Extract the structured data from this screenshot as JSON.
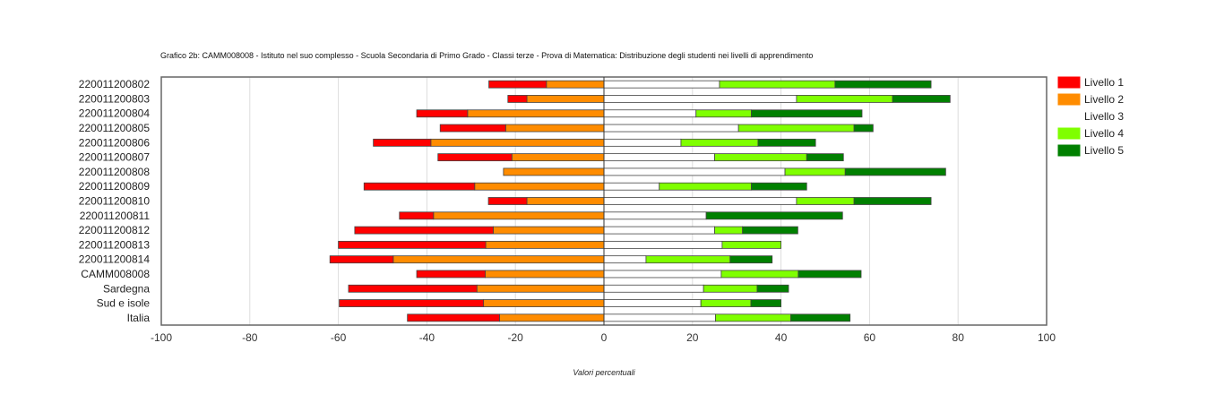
{
  "chart_data": {
    "type": "bar",
    "orientation": "horizontal-diverging",
    "title": "Grafico 2b: CAMM008008 - Istituto nel suo complesso - Scuola Secondaria di Primo Grado - Classi terze - Prova di Matematica: Distribuzione degli studenti nei livelli di apprendimento",
    "xlabel": "Valori percentuali",
    "ylabel": "",
    "xlim": [
      -100,
      100
    ],
    "xticks": [
      "-100",
      "-80",
      "-60",
      "-40",
      "-20",
      "0",
      "20",
      "40",
      "60",
      "80",
      "100"
    ],
    "grid": true,
    "legend_position": "right",
    "categories": [
      "220011200802",
      "220011200803",
      "220011200804",
      "220011200805",
      "220011200806",
      "220011200807",
      "220011200808",
      "220011200809",
      "220011200810",
      "220011200811",
      "220011200812",
      "220011200813",
      "220011200814",
      "CAMM008008",
      "Sardegna",
      "Sud e isole",
      "Italia"
    ],
    "series": [
      {
        "name": "Livello 1",
        "color": "#ff0000",
        "values": [
          13.0,
          4.3,
          11.5,
          14.8,
          13.0,
          16.7,
          0.0,
          25.0,
          8.7,
          7.7,
          31.3,
          33.3,
          14.3,
          15.5,
          29.0,
          32.6,
          20.8
        ]
      },
      {
        "name": "Livello 2",
        "color": "#ff8c00",
        "values": [
          13.0,
          17.4,
          30.8,
          22.2,
          39.1,
          20.8,
          22.7,
          29.2,
          17.4,
          38.5,
          25.0,
          26.7,
          47.6,
          26.8,
          28.7,
          27.2,
          23.6
        ]
      },
      {
        "name": "Livello 3",
        "color": "#ffffff",
        "values": [
          26.1,
          43.5,
          20.8,
          30.4,
          17.4,
          25.0,
          40.9,
          12.5,
          43.5,
          23.1,
          25.0,
          26.7,
          9.5,
          26.5,
          22.5,
          21.9,
          25.2
        ]
      },
      {
        "name": "Livello 4",
        "color": "#7fff00",
        "values": [
          26.1,
          21.7,
          12.5,
          26.1,
          17.4,
          20.8,
          13.6,
          20.8,
          13.0,
          0.0,
          6.3,
          13.3,
          19.0,
          17.4,
          12.1,
          11.3,
          17.0
        ]
      },
      {
        "name": "Livello 5",
        "color": "#008000",
        "values": [
          21.7,
          13.0,
          25.0,
          4.3,
          13.0,
          8.3,
          22.7,
          12.5,
          17.4,
          30.8,
          12.5,
          0.0,
          9.5,
          14.2,
          7.1,
          6.8,
          13.4
        ]
      }
    ]
  }
}
